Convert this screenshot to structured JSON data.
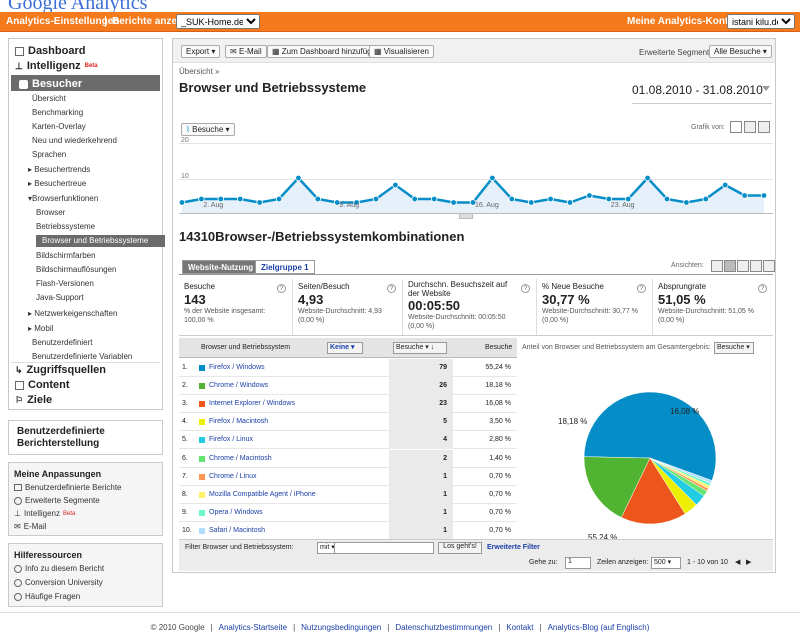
{
  "header": {
    "logo": "Google Analytics",
    "settings_link": "Analytics-Einstellungen",
    "reports_label": "Berichte anzeigen:",
    "profile_select": "_SUK-Home.de.vu",
    "accounts_label": "Meine Analytics-Konten:",
    "account_select": "istani kilu.de"
  },
  "sidebar": {
    "dashboard": "Dashboard",
    "intelligence": "Intelligenz",
    "beta": "Beta",
    "visitors": "Besucher",
    "items": [
      "Übersicht",
      "Benchmarking",
      "Karten-Overlay",
      "Neu und wiederkehrend",
      "Sprachen",
      "Besuchertrends",
      "Besuchertreue",
      "Browserfunktionen",
      "Browser",
      "Betriebssysteme",
      "Browser und Betriebssysteme",
      "Bildschirmfarben",
      "Bildschirmauflösungen",
      "Flash-Versionen",
      "Java-Support",
      "Netzwerkeigenschaften",
      "Mobil",
      "Benutzerdefiniert",
      "Benutzerdefinierte Variablen"
    ],
    "traffic_sources": "Zugriffsquellen",
    "content": "Content",
    "goals": "Ziele",
    "custom_reporting": "Benutzerdefinierte Berichterstellung",
    "customizations_title": "Meine Anpassungen",
    "customizations": [
      "Benutzerdefinierte Berichte",
      "Erweiterte Segmente",
      "Intelligenz",
      "E-Mail"
    ],
    "help_title": "Hilferessourcen",
    "help": [
      "Info zu diesem Bericht",
      "Conversion University",
      "Häufige Fragen"
    ]
  },
  "toolbar": {
    "export": "Export",
    "email": "E-Mail",
    "dashboard": "Zum Dashboard hinzufügen",
    "visualize": "Visualisieren",
    "segments_label": "Erweiterte Segmente:",
    "segments_value": "Alle Besuche"
  },
  "report": {
    "breadcrumb": "Übersicht »",
    "title": "Browser und Betriebssysteme",
    "date_range": "01.08.2010 - 31.08.2010",
    "metric_select": "Besuche",
    "graph_label": "Grafik von:",
    "section_title": "14310Browser-/Betriebssystemkombinationen",
    "tab_usage": "Website-Nutzung",
    "tab_goal": "Zielgruppe 1",
    "views_label": "Ansichten:"
  },
  "chart_data": {
    "type": "line",
    "ylim": [
      0,
      20
    ],
    "yticks": [
      "20",
      "10"
    ],
    "xticks": [
      "2. Aug",
      "9. Aug",
      "16. Aug",
      "23. Aug"
    ],
    "series": [
      {
        "name": "Besuche",
        "values": [
          3,
          4,
          4,
          4,
          3,
          4,
          10,
          4,
          3,
          3,
          4,
          8,
          4,
          4,
          3,
          3,
          10,
          4,
          3,
          4,
          3,
          5,
          4,
          4,
          10,
          4,
          3,
          4,
          8,
          5,
          5
        ]
      }
    ]
  },
  "metrics": [
    {
      "label": "Besuche",
      "value": "143",
      "sub1": "% der Website insgesamt:",
      "sub2": "100,00 %"
    },
    {
      "label": "Seiten/Besuch",
      "value": "4,93",
      "sub1": "Website-Durchschnitt: 4,93",
      "sub2": "(0,00 %)"
    },
    {
      "label": "Durchschn. Besuchszeit auf der Website",
      "value": "00:05:50",
      "sub1": "Website-Durchschnitt: 00:05:50",
      "sub2": "(0,00 %)"
    },
    {
      "label": "% Neue Besuche",
      "value": "30,77 %",
      "sub1": "Website-Durchschnitt: 30,77 %",
      "sub2": "(0,00 %)"
    },
    {
      "label": "Absprungrate",
      "value": "51,05 %",
      "sub1": "Website-Durchschnitt: 51,05 %",
      "sub2": "(0,00 %)"
    }
  ],
  "table": {
    "col_dimension": "Browser und Betriebssystem",
    "col_none": "Keine",
    "col_sort": "Besuche",
    "col_visits": "Besuche",
    "pie_label": "Anteil von Browser und Betriebssystem am Gesamtergebnis:",
    "pie_select": "Besuche",
    "rows": [
      {
        "n": "1.",
        "name": "Firefox / Windows",
        "visits": "79",
        "pct": "55,24 %",
        "color": "#058dc7"
      },
      {
        "n": "2.",
        "name": "Chrome / Windows",
        "visits": "26",
        "pct": "18,18 %",
        "color": "#50b432"
      },
      {
        "n": "3.",
        "name": "Internet Explorer / Windows",
        "visits": "23",
        "pct": "16,08 %",
        "color": "#ed561b"
      },
      {
        "n": "4.",
        "name": "Firefox / Macintosh",
        "visits": "5",
        "pct": "3,50 %",
        "color": "#edef00"
      },
      {
        "n": "5.",
        "name": "Firefox / Linux",
        "visits": "4",
        "pct": "2,80 %",
        "color": "#24cbe5"
      },
      {
        "n": "6.",
        "name": "Chrome / Macintosh",
        "visits": "2",
        "pct": "1,40 %",
        "color": "#64e572"
      },
      {
        "n": "7.",
        "name": "Chrome / Linux",
        "visits": "1",
        "pct": "0,70 %",
        "color": "#ff9655"
      },
      {
        "n": "8.",
        "name": "Mozilla Compatible Agent / iPhone",
        "visits": "1",
        "pct": "0,70 %",
        "color": "#fff263"
      },
      {
        "n": "9.",
        "name": "Opera / Windows",
        "visits": "1",
        "pct": "0,70 %",
        "color": "#6af9c4"
      },
      {
        "n": "10.",
        "name": "Safari / Macintosh",
        "visits": "1",
        "pct": "0,70 %",
        "color": "#b2deff"
      }
    ],
    "pie_values": [
      79,
      26,
      23,
      5,
      4,
      2,
      1,
      1,
      1,
      1
    ],
    "pie_labels": [
      "55,24 %",
      "18,18 %",
      "16,08 %"
    ]
  },
  "filter": {
    "label": "Filter Browser und Betriebssystem:",
    "mode": "mit",
    "value": "",
    "go": "Los geht's!",
    "advanced": "Erweiterte Filter"
  },
  "pager": {
    "goto_label": "Gehe zu:",
    "goto_value": "1",
    "show_label": "Zeilen anzeigen:",
    "show_value": "500",
    "range": "1 - 10 von 10"
  },
  "footer": [
    "© 2010 Google",
    "Analytics-Startseite",
    "Nutzungsbedingungen",
    "Datenschutzbestimmungen",
    "Kontakt",
    "Analytics-Blog (auf Englisch)"
  ]
}
